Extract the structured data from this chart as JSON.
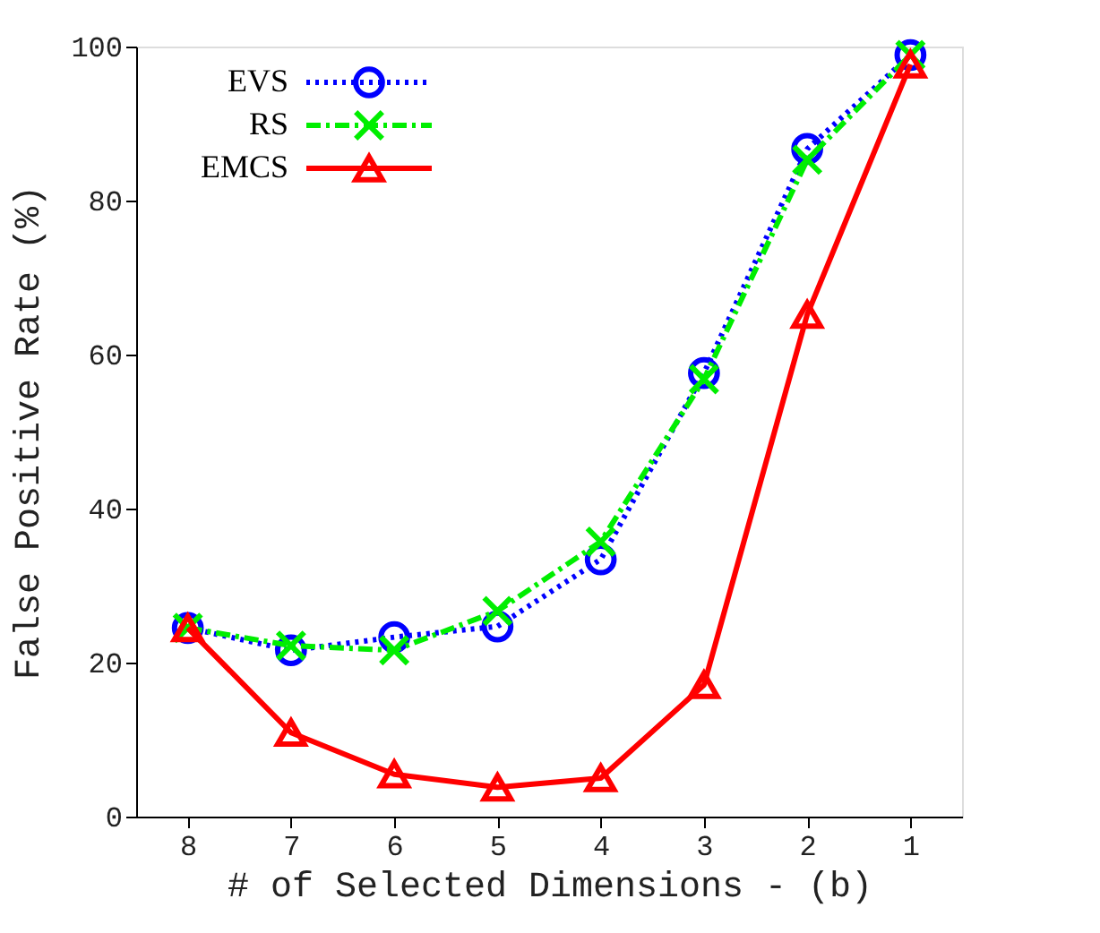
{
  "chart_data": {
    "type": "line",
    "xlabel": "# of Selected Dimensions - (b)",
    "ylabel": "False Positive Rate (%)",
    "categories": [
      "8",
      "7",
      "6",
      "5",
      "4",
      "3",
      "2",
      "1"
    ],
    "ylim": [
      0,
      100
    ],
    "yticks": [
      0,
      20,
      40,
      60,
      80,
      100
    ],
    "grid": false,
    "legend": "top left",
    "series": [
      {
        "name": "EVS",
        "color": "#0000ff",
        "marker": "circle",
        "line_style": "dotted",
        "values": [
          24.5,
          21.6,
          23.3,
          24.7,
          33.4,
          57.6,
          86.7,
          98.9
        ]
      },
      {
        "name": "RS",
        "color": "#00ee00",
        "marker": "cross",
        "line_style": "dashdot",
        "values": [
          24.5,
          22.2,
          21.6,
          26.7,
          35.7,
          56.8,
          85.3,
          98.9
        ]
      },
      {
        "name": "EMCS",
        "color": "#ff0000",
        "marker": "triangle",
        "line_style": "solid",
        "values": [
          24.5,
          10.9,
          5.5,
          3.8,
          5.0,
          17.1,
          65.2,
          97.7
        ]
      }
    ]
  }
}
